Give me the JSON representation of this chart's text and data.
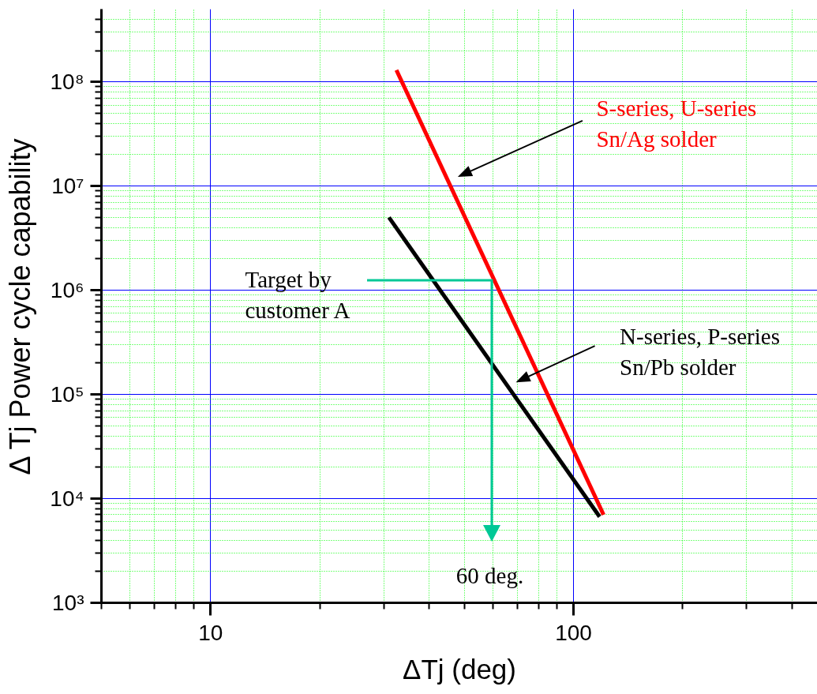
{
  "chart_data": {
    "type": "line",
    "xlabel": "ΔTj (deg)",
    "ylabel": "Δ Tj Power cycle capability",
    "log": "xy",
    "grid": true,
    "xlim": [
      5,
      470
    ],
    "ylim": [
      1000,
      500000000
    ],
    "xticks": [
      {
        "value": 5,
        "label": null
      },
      {
        "value": 6,
        "label": null
      },
      {
        "value": 7,
        "label": null
      },
      {
        "value": 8,
        "label": null
      },
      {
        "value": 9,
        "label": null
      },
      10,
      {
        "value": 20,
        "label": null
      },
      {
        "value": 30,
        "label": null
      },
      {
        "value": 40,
        "label": null
      },
      {
        "value": 50,
        "label": null
      },
      {
        "value": 60,
        "label": null
      },
      {
        "value": 70,
        "label": null
      },
      {
        "value": 80,
        "label": null
      },
      {
        "value": 90,
        "label": null
      },
      100,
      {
        "value": 200,
        "label": null
      },
      {
        "value": 300,
        "label": null
      },
      {
        "value": 400,
        "label": null
      }
    ],
    "yticks": [
      {
        "value": 1000,
        "label": "10³"
      },
      {
        "value": 2000,
        "label": null
      },
      {
        "value": 3000,
        "label": null
      },
      {
        "value": 4000,
        "label": null
      },
      {
        "value": 5000,
        "label": null
      },
      {
        "value": 6000,
        "label": null
      },
      {
        "value": 7000,
        "label": null
      },
      {
        "value": 8000,
        "label": null
      },
      {
        "value": 9000,
        "label": null
      },
      {
        "value": 10000,
        "label": "10⁴"
      },
      {
        "value": 20000,
        "label": null
      },
      {
        "value": 30000,
        "label": null
      },
      {
        "value": 40000,
        "label": null
      },
      {
        "value": 50000,
        "label": null
      },
      {
        "value": 60000,
        "label": null
      },
      {
        "value": 70000,
        "label": null
      },
      {
        "value": 80000,
        "label": null
      },
      {
        "value": 90000,
        "label": null
      },
      {
        "value": 100000,
        "label": "10⁵"
      },
      {
        "value": 200000,
        "label": null
      },
      {
        "value": 300000,
        "label": null
      },
      {
        "value": 400000,
        "label": null
      },
      {
        "value": 500000,
        "label": null
      },
      {
        "value": 600000,
        "label": null
      },
      {
        "value": 700000,
        "label": null
      },
      {
        "value": 800000,
        "label": null
      },
      {
        "value": 900000,
        "label": null
      },
      {
        "value": 1000000,
        "label": "10⁶"
      },
      {
        "value": 2000000,
        "label": null
      },
      {
        "value": 3000000,
        "label": null
      },
      {
        "value": 4000000,
        "label": null
      },
      {
        "value": 5000000,
        "label": null
      },
      {
        "value": 6000000,
        "label": null
      },
      {
        "value": 7000000,
        "label": null
      },
      {
        "value": 8000000,
        "label": null
      },
      {
        "value": 9000000,
        "label": null
      },
      {
        "value": 10000000,
        "label": "10⁷"
      },
      {
        "value": 20000000,
        "label": null
      },
      {
        "value": 30000000,
        "label": null
      },
      {
        "value": 40000000,
        "label": null
      },
      {
        "value": 50000000,
        "label": null
      },
      {
        "value": 60000000,
        "label": null
      },
      {
        "value": 70000000,
        "label": null
      },
      {
        "value": 80000000,
        "label": null
      },
      {
        "value": 90000000,
        "label": null
      },
      {
        "value": 100000000,
        "label": "10⁸"
      },
      {
        "value": 200000000,
        "label": null
      },
      {
        "value": 300000000,
        "label": null
      },
      {
        "value": 400000000,
        "label": null
      }
    ],
    "series": [
      {
        "name": "S-series, U-series Sn/Ag solder",
        "color": "#ff0000",
        "x": [
          32.5,
          121
        ],
        "values": [
          130000000,
          7000
        ]
      },
      {
        "name": "N-series, P-series Sn/Pb solder",
        "color": "#000000",
        "x": [
          31,
          118
        ],
        "values": [
          5000000,
          6700
        ]
      }
    ],
    "annotations": [
      "Target by customer A",
      "60 deg."
    ]
  }
}
